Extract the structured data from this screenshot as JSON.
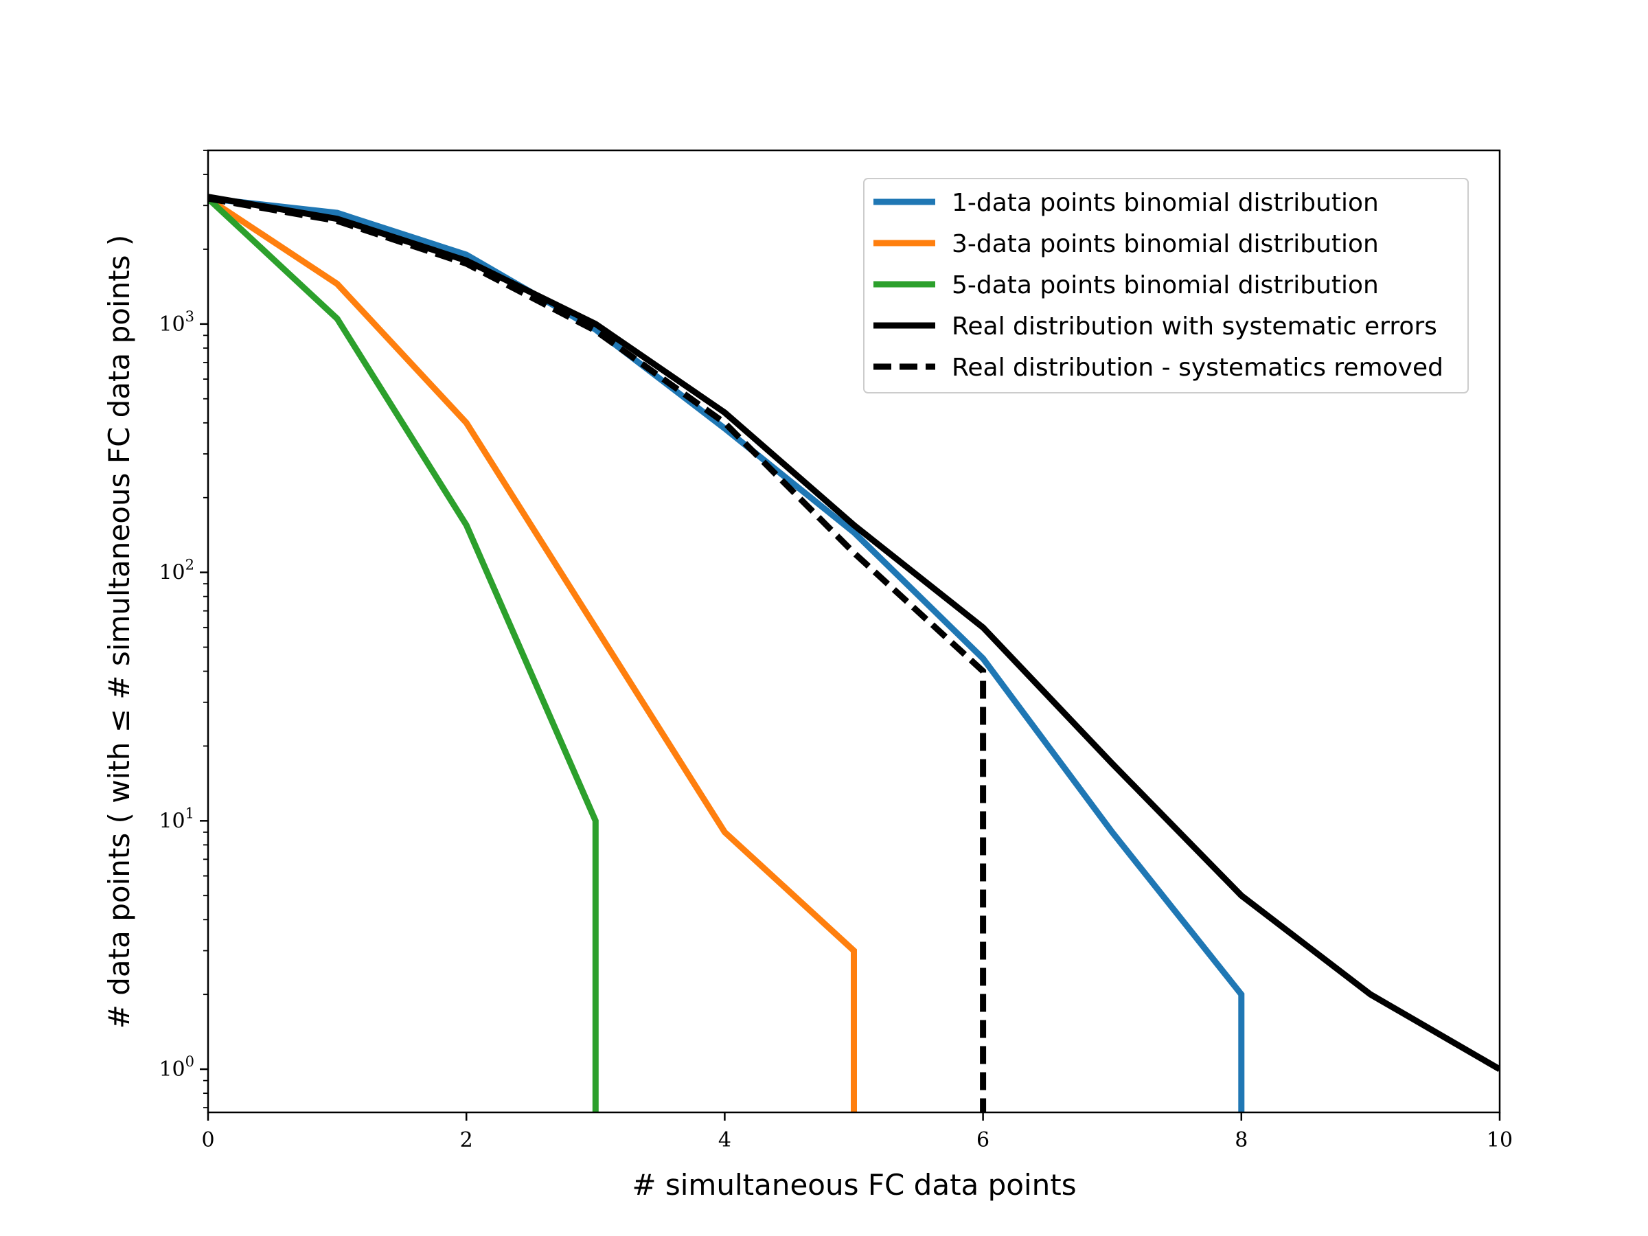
{
  "chart_data": {
    "type": "line",
    "title": "",
    "xlabel": "# simultaneous FC data points",
    "ylabel": "# data points ( with ≤ # simultaneous FC data points )",
    "xlim": [
      0,
      10
    ],
    "ylim": [
      0.67,
      5000
    ],
    "yscale": "log",
    "grid": false,
    "legend_position": "top-right",
    "x_ticks": [
      "0",
      "2",
      "4",
      "6",
      "8",
      "10"
    ],
    "y_ticks": [
      {
        "value": 1,
        "base": "10",
        "exp": "0"
      },
      {
        "value": 10,
        "base": "10",
        "exp": "1"
      },
      {
        "value": 100,
        "base": "10",
        "exp": "2"
      },
      {
        "value": 1000,
        "base": "10",
        "exp": "3"
      }
    ],
    "series": [
      {
        "name": "1-data points binomial distribution",
        "color": "#1f77b4",
        "dash": "solid",
        "x": [
          0,
          1,
          2,
          3,
          4,
          5,
          6,
          7,
          8,
          8
        ],
        "y": [
          3200,
          2800,
          1900,
          950,
          380,
          145,
          45,
          9,
          2,
          0.6
        ]
      },
      {
        "name": "3-data points binomial distribution",
        "color": "#ff7f0e",
        "dash": "solid",
        "x": [
          0,
          1,
          2,
          3,
          4,
          5,
          5
        ],
        "y": [
          3200,
          1450,
          400,
          60,
          9,
          3,
          0.6
        ]
      },
      {
        "name": "5-data points binomial distribution",
        "color": "#2ca02c",
        "dash": "solid",
        "x": [
          0,
          1,
          2,
          3,
          3
        ],
        "y": [
          3200,
          1050,
          155,
          10,
          0.6
        ]
      },
      {
        "name": "Real distribution with systematic errors",
        "color": "#000000",
        "dash": "solid",
        "x": [
          0,
          1,
          2,
          3,
          4,
          5,
          6,
          7,
          8,
          9,
          10
        ],
        "y": [
          3250,
          2650,
          1800,
          1000,
          440,
          155,
          60,
          17,
          5,
          2,
          1
        ]
      },
      {
        "name": "Real distribution - systematics removed",
        "color": "#000000",
        "dash": "dashed",
        "x": [
          0,
          1,
          2,
          3,
          4,
          5,
          6,
          6
        ],
        "y": [
          3200,
          2600,
          1750,
          940,
          400,
          120,
          40,
          0.6
        ]
      }
    ]
  }
}
